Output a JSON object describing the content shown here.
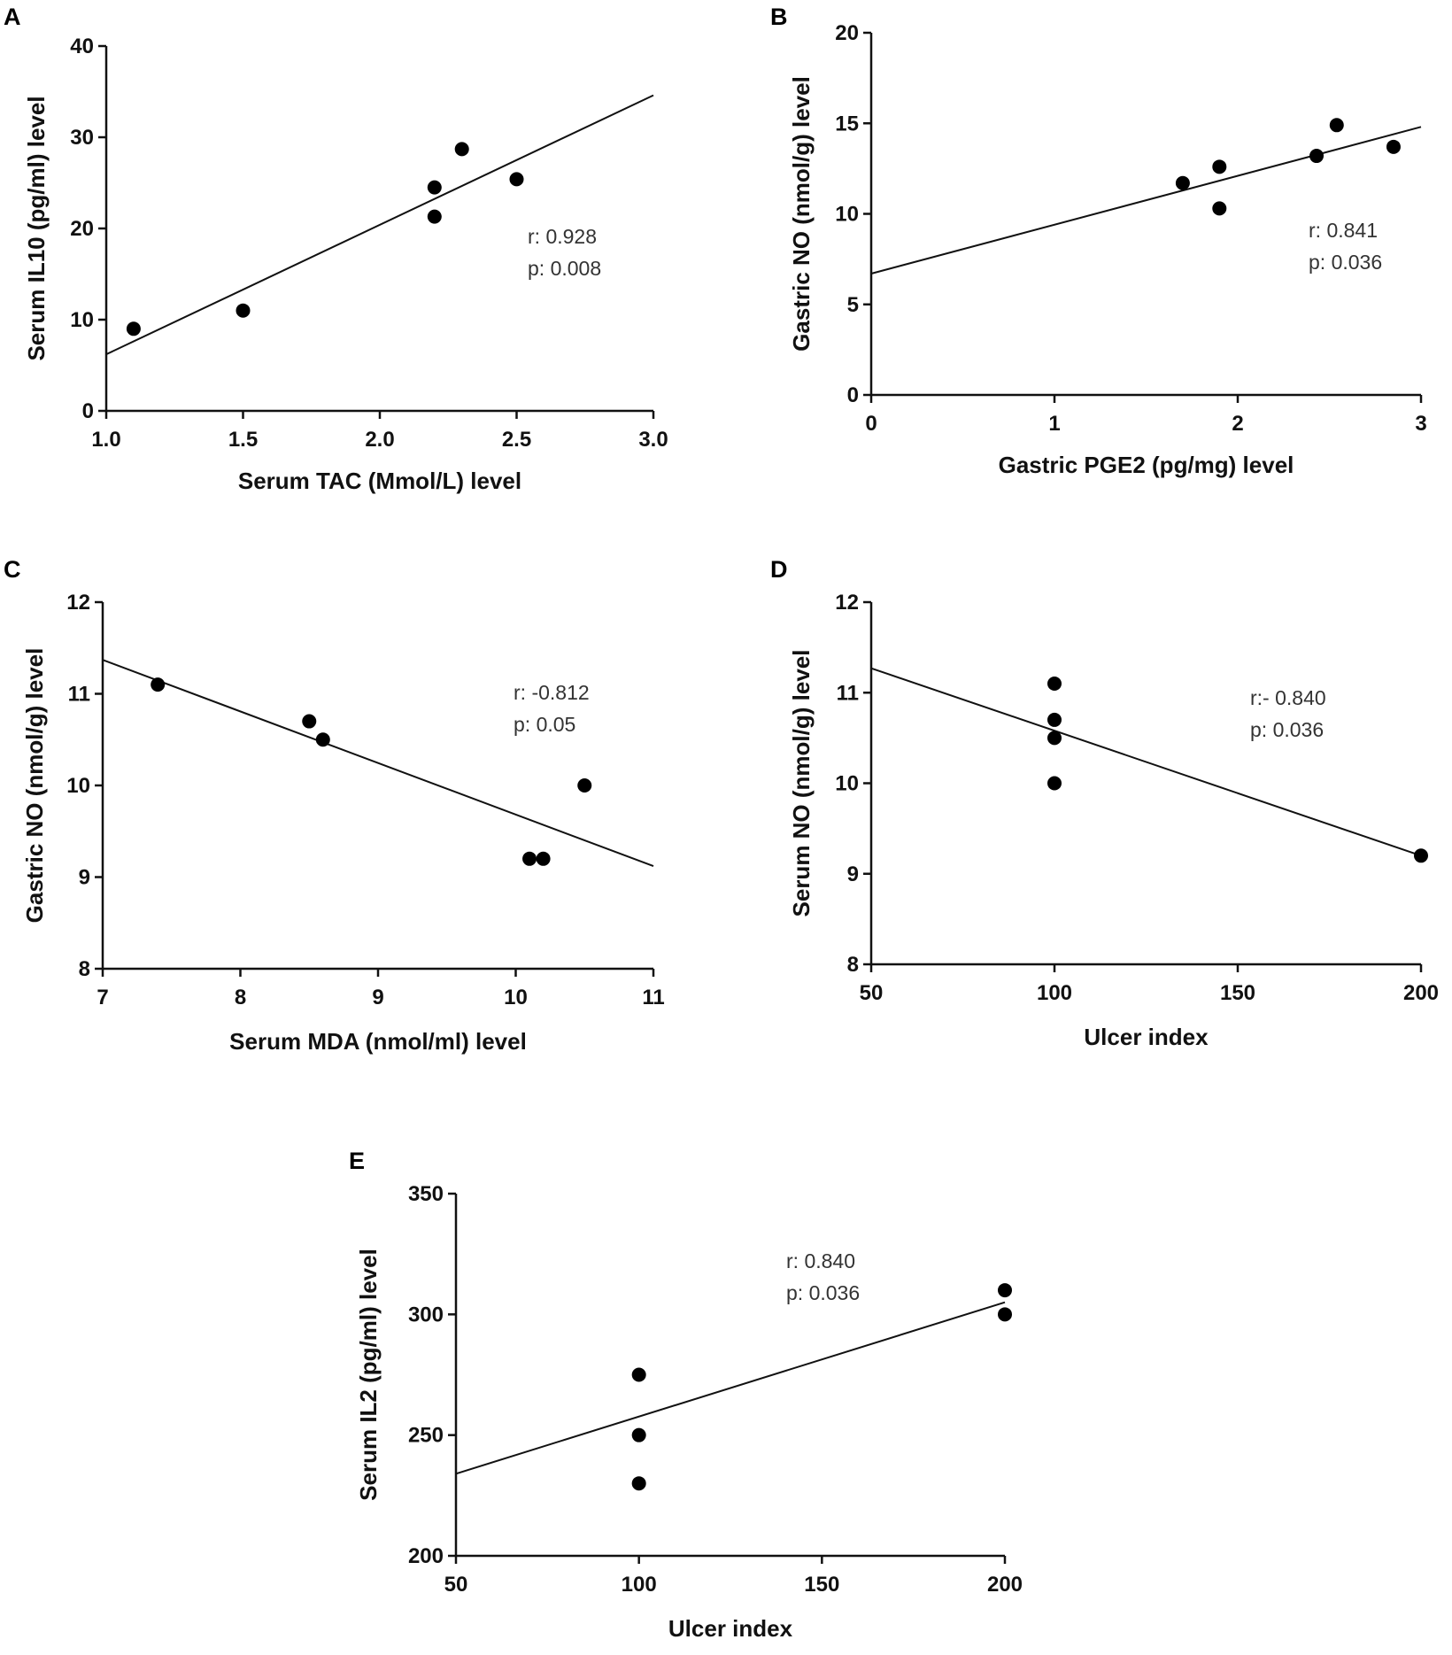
{
  "chart_data": [
    {
      "panel": "A",
      "type": "scatter",
      "xlabel": "Serum TAC (Mmol/L) level",
      "ylabel": "Serum IL10 (pg/ml) level",
      "xlim": [
        1.0,
        3.0
      ],
      "ylim": [
        0,
        40
      ],
      "xticks": [
        1.0,
        1.5,
        2.0,
        2.5,
        3.0
      ],
      "xtick_labels": [
        "1.0",
        "1.5",
        "2.0",
        "2.5",
        "3.0"
      ],
      "yticks": [
        0,
        10,
        20,
        30,
        40
      ],
      "ytick_labels": [
        "0",
        "10",
        "20",
        "30",
        "40"
      ],
      "points": [
        [
          1.1,
          9
        ],
        [
          1.5,
          11
        ],
        [
          2.2,
          24.5
        ],
        [
          2.2,
          21.3
        ],
        [
          2.3,
          28.7
        ],
        [
          2.5,
          25.4
        ]
      ],
      "fit_line": [
        [
          1.0,
          6.2
        ],
        [
          3.0,
          34.6
        ]
      ],
      "annotations": [
        "r: 0.928",
        "p: 0.008"
      ],
      "grid": false
    },
    {
      "panel": "B",
      "type": "scatter",
      "xlabel": "Gastric PGE2 (pg/mg) level",
      "ylabel": "Gastric NO (nmol/g) level",
      "xlim": [
        0,
        3
      ],
      "ylim": [
        0,
        20
      ],
      "xticks": [
        0,
        1,
        2,
        3
      ],
      "xtick_labels": [
        "0",
        "1",
        "2",
        "3"
      ],
      "yticks": [
        0,
        5,
        10,
        15,
        20
      ],
      "ytick_labels": [
        "0",
        "5",
        "10",
        "15",
        "20"
      ],
      "points": [
        [
          1.7,
          11.7
        ],
        [
          1.9,
          12.6
        ],
        [
          1.9,
          10.3
        ],
        [
          2.43,
          13.2
        ],
        [
          2.54,
          14.9
        ],
        [
          2.85,
          13.7
        ]
      ],
      "fit_line": [
        [
          0,
          6.7
        ],
        [
          3,
          14.8
        ]
      ],
      "annotations": [
        "r: 0.841",
        "p: 0.036"
      ],
      "grid": false
    },
    {
      "panel": "C",
      "type": "scatter",
      "xlabel": "Serum MDA (nmol/ml) level",
      "ylabel": "Gastric NO (nmol/g) level",
      "xlim": [
        7,
        11
      ],
      "ylim": [
        8,
        12
      ],
      "xticks": [
        7,
        8,
        9,
        10,
        11
      ],
      "xtick_labels": [
        "7",
        "8",
        "9",
        "10",
        "11"
      ],
      "yticks": [
        8,
        9,
        10,
        11,
        12
      ],
      "ytick_labels": [
        "8",
        "9",
        "10",
        "11",
        "12"
      ],
      "points": [
        [
          7.4,
          11.1
        ],
        [
          8.5,
          10.7
        ],
        [
          8.6,
          10.5
        ],
        [
          10.1,
          9.2
        ],
        [
          10.2,
          9.2
        ],
        [
          10.5,
          10.0
        ]
      ],
      "fit_line": [
        [
          7,
          11.37
        ],
        [
          11,
          9.12
        ]
      ],
      "annotations": [
        "r: -0.812",
        "p: 0.05"
      ],
      "grid": false
    },
    {
      "panel": "D",
      "type": "scatter",
      "xlabel": "Ulcer index",
      "ylabel": "Serum NO (nmol/g) level",
      "xlim": [
        50,
        200
      ],
      "ylim": [
        8,
        12
      ],
      "xticks": [
        50,
        100,
        150,
        200
      ],
      "xtick_labels": [
        "50",
        "100",
        "150",
        "200"
      ],
      "yticks": [
        8,
        9,
        10,
        11,
        12
      ],
      "ytick_labels": [
        "8",
        "9",
        "10",
        "11",
        "12"
      ],
      "points": [
        [
          100,
          11.1
        ],
        [
          100,
          10.7
        ],
        [
          100,
          10.5
        ],
        [
          100,
          10.0
        ],
        [
          200,
          9.2
        ]
      ],
      "fit_line": [
        [
          50,
          11.27
        ],
        [
          200,
          9.2
        ]
      ],
      "annotations": [
        "r:- 0.840",
        "p: 0.036"
      ],
      "grid": false
    },
    {
      "panel": "E",
      "type": "scatter",
      "xlabel": "Ulcer index",
      "ylabel": "Serum IL2 (pg/ml) level",
      "xlim": [
        50,
        200
      ],
      "ylim": [
        200,
        350
      ],
      "xticks": [
        50,
        100,
        150,
        200
      ],
      "xtick_labels": [
        "50",
        "100",
        "150",
        "200"
      ],
      "yticks": [
        200,
        250,
        300,
        350
      ],
      "ytick_labels": [
        "200",
        "250",
        "300",
        "350"
      ],
      "points": [
        [
          100,
          275
        ],
        [
          100,
          250
        ],
        [
          100,
          230
        ],
        [
          200,
          310
        ],
        [
          200,
          300
        ]
      ],
      "fit_line": [
        [
          50,
          234
        ],
        [
          200,
          305
        ]
      ],
      "annotations": [
        "r: 0.840",
        "p: 0.036"
      ],
      "grid": false
    }
  ]
}
